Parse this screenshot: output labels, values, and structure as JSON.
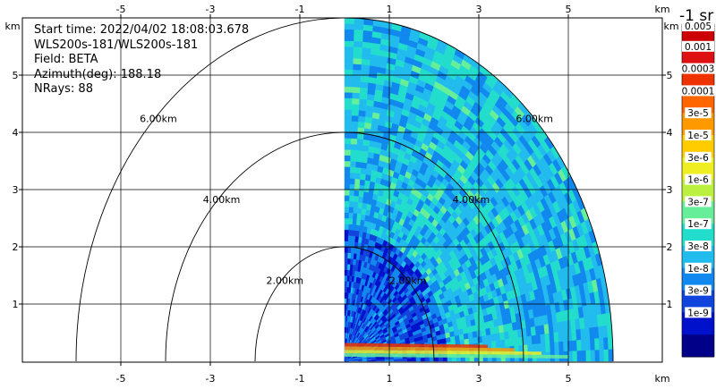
{
  "info": {
    "start_time": "Start time: 2022/04/02 18:08:03.678",
    "instrument": "WLS200s-181/WLS200s-181",
    "field": "Field: BETA",
    "azimuth": "Azimuth(deg): 188.18",
    "nrays": "NRays: 88"
  },
  "colorbar": {
    "title": "-1 sr",
    "labels": [
      "0.005",
      "0.001",
      "0.0003",
      "0.0001",
      "3e-5",
      "1e-5",
      "3e-6",
      "1e-6",
      "3e-7",
      "1e-7",
      "3e-8",
      "1e-8",
      "3e-9",
      "1e-9"
    ],
    "colors": [
      "#cc0000",
      "#dd1111",
      "#ee3300",
      "#ff6600",
      "#ff9900",
      "#ffcc00",
      "#eeee22",
      "#bbf040",
      "#66ee99",
      "#22ddcc",
      "#22bbee",
      "#1188ee",
      "#1144dd",
      "#0011cc",
      "#000088"
    ]
  },
  "axes": {
    "x_unit": "km",
    "y_unit": "km",
    "x_tick_labels": [
      "-5",
      "-3",
      "-1",
      "1",
      "3",
      "5"
    ],
    "y_tick_labels": [
      "1",
      "2",
      "3",
      "4",
      "5"
    ]
  },
  "range_rings": {
    "left_labels": [
      "2.00km",
      "4.00km",
      "6.00km"
    ],
    "right_labels": [
      "2.00km",
      "4.00km",
      "6.00km"
    ]
  },
  "chart_data": {
    "type": "heatmap",
    "field": "BETA",
    "units": "-1 sr",
    "xlim": [
      -6,
      6.3
    ],
    "ylim": [
      0,
      6
    ],
    "azimuth_deg": 188.18,
    "n_rays": 88,
    "range_rings_km": [
      2,
      4,
      6
    ],
    "max_range_km": 6,
    "x_ticks": [
      -5,
      -3,
      -1,
      1,
      3,
      5
    ],
    "y_ticks": [
      1,
      2,
      3,
      4,
      5
    ],
    "grid": true,
    "color_scale": "log"
  }
}
